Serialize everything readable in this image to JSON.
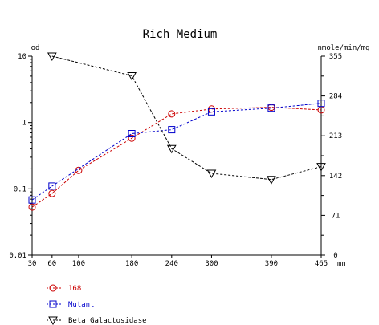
{
  "chart_data": {
    "type": "line",
    "title": "Rich Medium",
    "x": [
      30,
      60,
      100,
      180,
      240,
      300,
      390,
      465
    ],
    "x_ticks": [
      "30",
      "60",
      "100",
      "180",
      "240",
      "300",
      "390",
      "465"
    ],
    "x_unit": "mn",
    "xlim": [
      30,
      465
    ],
    "y_left": {
      "label": "od",
      "scale": "log",
      "lim": [
        0.01,
        10
      ],
      "ticks": [
        "0.01",
        "0.1",
        "1",
        "10"
      ]
    },
    "y_right": {
      "label": "nmole/min/mg",
      "scale": "linear",
      "lim": [
        0,
        355
      ],
      "ticks": [
        "0",
        "71",
        "142",
        "213",
        "284",
        "355"
      ]
    },
    "series": [
      {
        "name": "168",
        "axis": "left",
        "color": "#cc0000",
        "marker": "circle",
        "values": [
          0.053,
          0.085,
          0.19,
          0.58,
          1.35,
          1.6,
          1.7,
          1.55
        ]
      },
      {
        "name": "Mutant",
        "axis": "left",
        "color": "#0000cc",
        "marker": "square",
        "values": [
          0.068,
          0.11,
          null,
          0.68,
          0.78,
          1.45,
          1.65,
          1.95
        ]
      },
      {
        "name": "Beta Galactosidase",
        "axis": "right",
        "color": "#000000",
        "marker": "triangle-down",
        "values": [
          null,
          355,
          null,
          320,
          190,
          146,
          135,
          158
        ]
      }
    ],
    "legend_position": "bottom-left",
    "grid": false
  }
}
